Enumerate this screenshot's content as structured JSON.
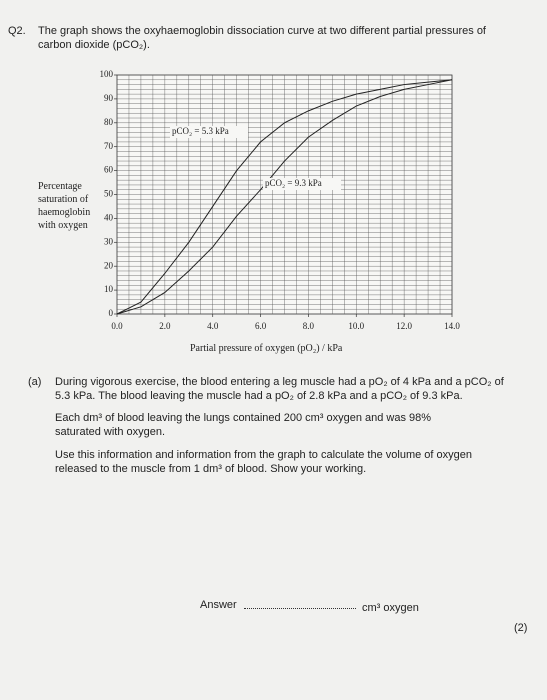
{
  "question": {
    "number": "Q2.",
    "intro": "The graph shows the oxyhaemoglobin dissociation curve at two different partial pressures of carbon dioxide (pCO₂)."
  },
  "chart_data": {
    "type": "line",
    "x_label": "Partial pressure of oxygen (pO₂) / kPa",
    "y_label": "Percentage saturation of haemoglobin with oxygen",
    "x": [
      0,
      1,
      2,
      3,
      4,
      5,
      6,
      7,
      8,
      9,
      10,
      11,
      12,
      13,
      14
    ],
    "series": [
      {
        "name": "pCO₂ = 5.3 kPa",
        "color": "#222222",
        "values": [
          0,
          5,
          17,
          30,
          45,
          60,
          72,
          80,
          85,
          89,
          92,
          94,
          96,
          97,
          98
        ]
      },
      {
        "name": "pCO₂ = 9.3 kPa",
        "color": "#222222",
        "values": [
          0,
          3,
          9,
          18,
          28,
          41,
          52,
          64,
          74,
          81,
          87,
          91,
          94,
          96,
          98
        ]
      }
    ],
    "xlim": [
      0,
      14
    ],
    "ylim": [
      0,
      100
    ],
    "xticks": [
      {
        "value": 0,
        "label": "0.0"
      },
      {
        "value": 2,
        "label": "2.0"
      },
      {
        "value": 4,
        "label": "4.0"
      },
      {
        "value": 6,
        "label": "6.0"
      },
      {
        "value": 8,
        "label": "8.0"
      },
      {
        "value": 10,
        "label": "10.0"
      },
      {
        "value": 12,
        "label": "12.0"
      },
      {
        "value": 14,
        "label": "14.0"
      }
    ],
    "yticks": [
      0,
      10,
      20,
      30,
      40,
      50,
      60,
      70,
      80,
      90,
      100
    ],
    "grid": true
  },
  "part_a": {
    "label": "(a)",
    "paragraphs": [
      "During vigorous exercise, the blood entering a leg muscle had a pO₂ of 4 kPa and a pCO₂ of 5.3 kPa. The blood leaving the muscle had a pO₂ of 2.8 kPa and a pCO₂ of 9.3 kPa.",
      "Each dm³ of blood leaving the lungs contained 200 cm³ oxygen and was 98% saturated with oxygen.",
      "Use this information and information from the graph to calculate the volume of oxygen released to the muscle from 1 dm³ of blood. Show your working."
    ],
    "answer_label": "Answer",
    "answer_unit": "cm³ oxygen",
    "marks": "(2)"
  }
}
